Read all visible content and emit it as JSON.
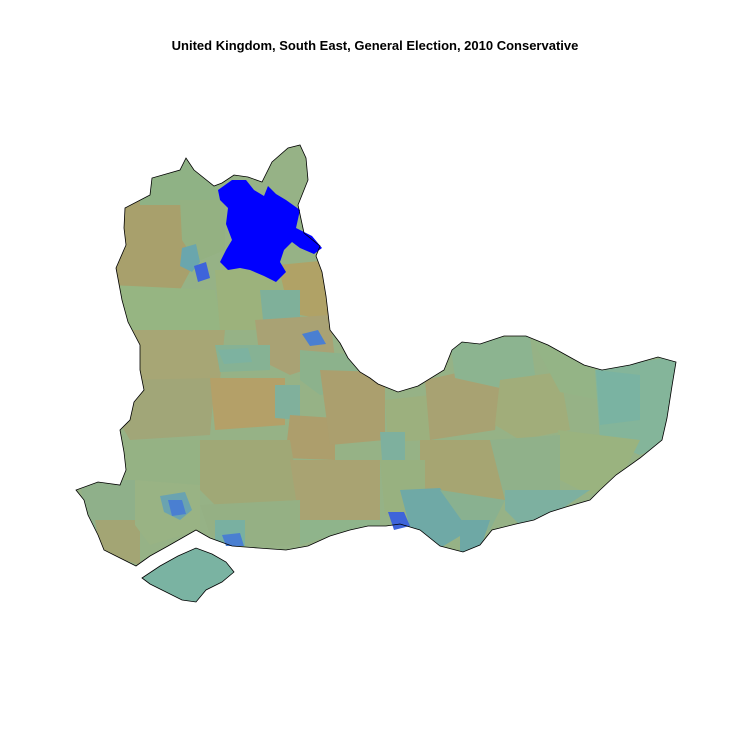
{
  "map": {
    "title": "United Kingdom, South East, General Election, 2010 Conservative",
    "region": "South East",
    "country": "United Kingdom",
    "election": "General Election, 2010",
    "party": "Conservative",
    "colors": {
      "background": "#ffffff",
      "outline": "#000000",
      "highlight": "#0000ff",
      "palette": [
        "#a8a06c",
        "#8fb285",
        "#9bb47f",
        "#a9a274",
        "#7fb4a0",
        "#6ea9a7",
        "#b0a266",
        "#96b582",
        "#78b09f",
        "#4a7fd1",
        "#3e64da"
      ]
    }
  }
}
